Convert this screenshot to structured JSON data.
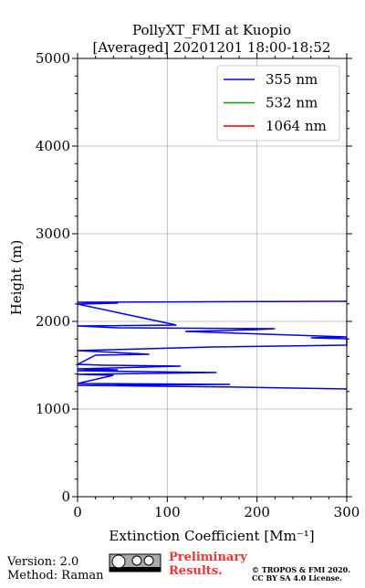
{
  "chart_data": {
    "type": "line",
    "title": "PollyXT_FMI at Kuopio",
    "subtitle": "[Averaged] 20201201 18:00-18:52",
    "x_label": "Extinction Coefficient [Mm⁻¹]",
    "y_label": "Height (m)",
    "y": [
      1229,
      1250,
      1271,
      1281,
      1292,
      1385,
      1396,
      1406,
      1417,
      1427,
      1437,
      1448,
      1458,
      1479,
      1490,
      1500,
      1510,
      1615,
      1625,
      1667,
      1708,
      1729,
      1802,
      1812,
      1823,
      1885,
      1906,
      1917,
      1927,
      1948,
      1958,
      2198,
      2208,
      2219,
      2229
    ],
    "series": [
      {
        "name": "355 nm",
        "color": "#0000ff",
        "values": [
          300,
          180,
          0,
          170,
          0,
          40,
          0,
          80,
          155,
          70,
          0,
          45,
          0,
          75,
          115,
          30,
          0,
          20,
          80,
          0,
          150,
          300,
          300,
          260,
          300,
          120,
          200,
          220,
          45,
          0,
          110,
          0,
          45,
          0,
          300
        ]
      },
      {
        "name": "532 nm",
        "color": "#00aa00",
        "values": [
          null,
          null,
          null,
          null,
          null,
          null,
          null,
          null,
          null,
          null,
          null,
          null,
          null,
          null,
          null,
          null,
          null,
          null,
          null,
          null,
          null,
          null,
          null,
          null,
          null,
          null,
          null,
          null,
          null,
          null,
          null,
          null,
          null,
          null,
          null
        ]
      },
      {
        "name": "1064 nm",
        "color": "#dd0000",
        "values": [
          null,
          null,
          null,
          null,
          null,
          null,
          null,
          null,
          null,
          null,
          null,
          null,
          null,
          null,
          null,
          null,
          null,
          null,
          null,
          null,
          null,
          null,
          null,
          null,
          null,
          null,
          null,
          null,
          null,
          null,
          null,
          null,
          null,
          null,
          null
        ]
      }
    ],
    "xlim": [
      0,
      300
    ],
    "xticks": [
      0,
      100,
      200,
      300
    ],
    "ylim": [
      0,
      5000
    ],
    "yticks": [
      0,
      1000,
      2000,
      3000,
      4000,
      5000
    ],
    "grid": true,
    "legend": "upper right"
  },
  "footer": {
    "version": "Version: 2.0",
    "method": "Method: Raman",
    "preliminary": "Preliminary Results.",
    "copyright": "© TROPOS & FMI 2020.",
    "license": "CC BY SA 4.0 License."
  }
}
